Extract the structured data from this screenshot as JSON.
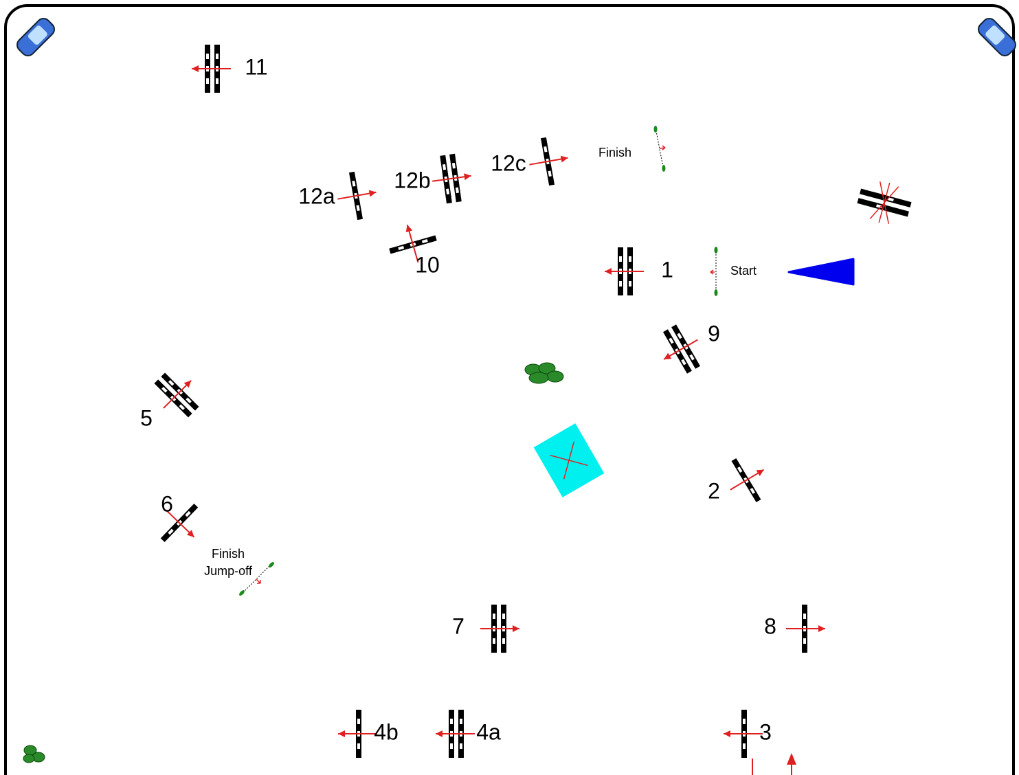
{
  "fences": [
    {
      "label": "11"
    },
    {
      "label": "12a"
    },
    {
      "label": "12b"
    },
    {
      "label": "12c"
    },
    {
      "label": "10"
    },
    {
      "label": "1"
    },
    {
      "label": "9"
    },
    {
      "label": "5"
    },
    {
      "label": "2"
    },
    {
      "label": "6"
    },
    {
      "label": "7"
    },
    {
      "label": "8"
    },
    {
      "label": "4b"
    },
    {
      "label": "4a"
    },
    {
      "label": "3"
    }
  ],
  "markers": {
    "finish": "Finish",
    "start": "Start",
    "finish_jumpoff": [
      "Finish",
      "Jump-off"
    ]
  }
}
